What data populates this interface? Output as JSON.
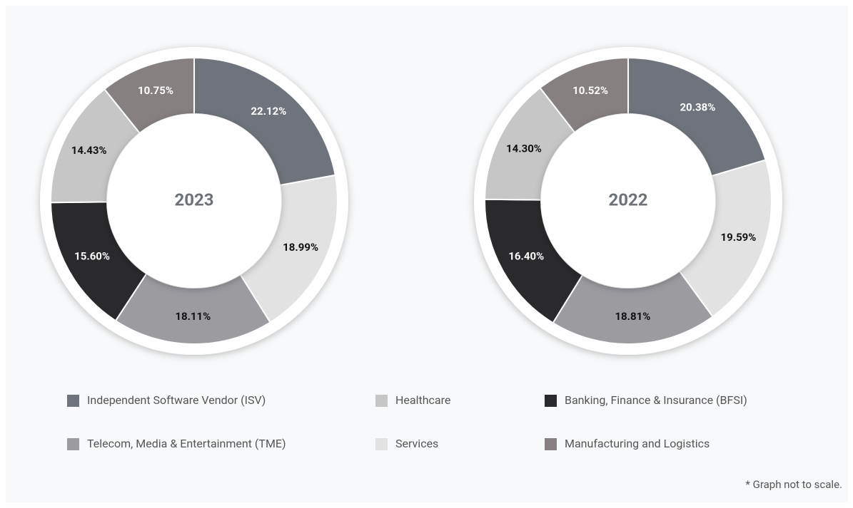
{
  "chart_data": [
    {
      "type": "pie",
      "title": "2023",
      "categories": [
        "Independent Software Vendor (ISV)",
        "Services",
        "Telecom, Media & Entertainment (TME)",
        "Banking, Finance & Insurance (BFSI)",
        "Healthcare",
        "Manufacturing and Logistics"
      ],
      "values": [
        22.12,
        18.99,
        18.11,
        15.6,
        14.43,
        10.75
      ],
      "value_labels": [
        "22.12%",
        "18.99%",
        "18.11%",
        "15.60%",
        "14.43%",
        "10.75%"
      ],
      "colors": [
        "#6f747c",
        "#e2e2e2",
        "#9c9ba0",
        "#2a2a2c",
        "#c6c6c6",
        "#868080"
      ]
    },
    {
      "type": "pie",
      "title": "2022",
      "categories": [
        "Independent Software Vendor (ISV)",
        "Services",
        "Telecom, Media & Entertainment (TME)",
        "Banking, Finance & Insurance (BFSI)",
        "Healthcare",
        "Manufacturing and Logistics"
      ],
      "values": [
        20.38,
        19.59,
        18.81,
        16.4,
        14.3,
        10.52
      ],
      "value_labels": [
        "20.38%",
        "19.59%",
        "18.81%",
        "16.40%",
        "14.30%",
        "10.52%"
      ],
      "colors": [
        "#6f747c",
        "#e2e2e2",
        "#9c9ba0",
        "#2a2a2c",
        "#c6c6c6",
        "#868080"
      ]
    }
  ],
  "footnote": "* Graph not to scale."
}
